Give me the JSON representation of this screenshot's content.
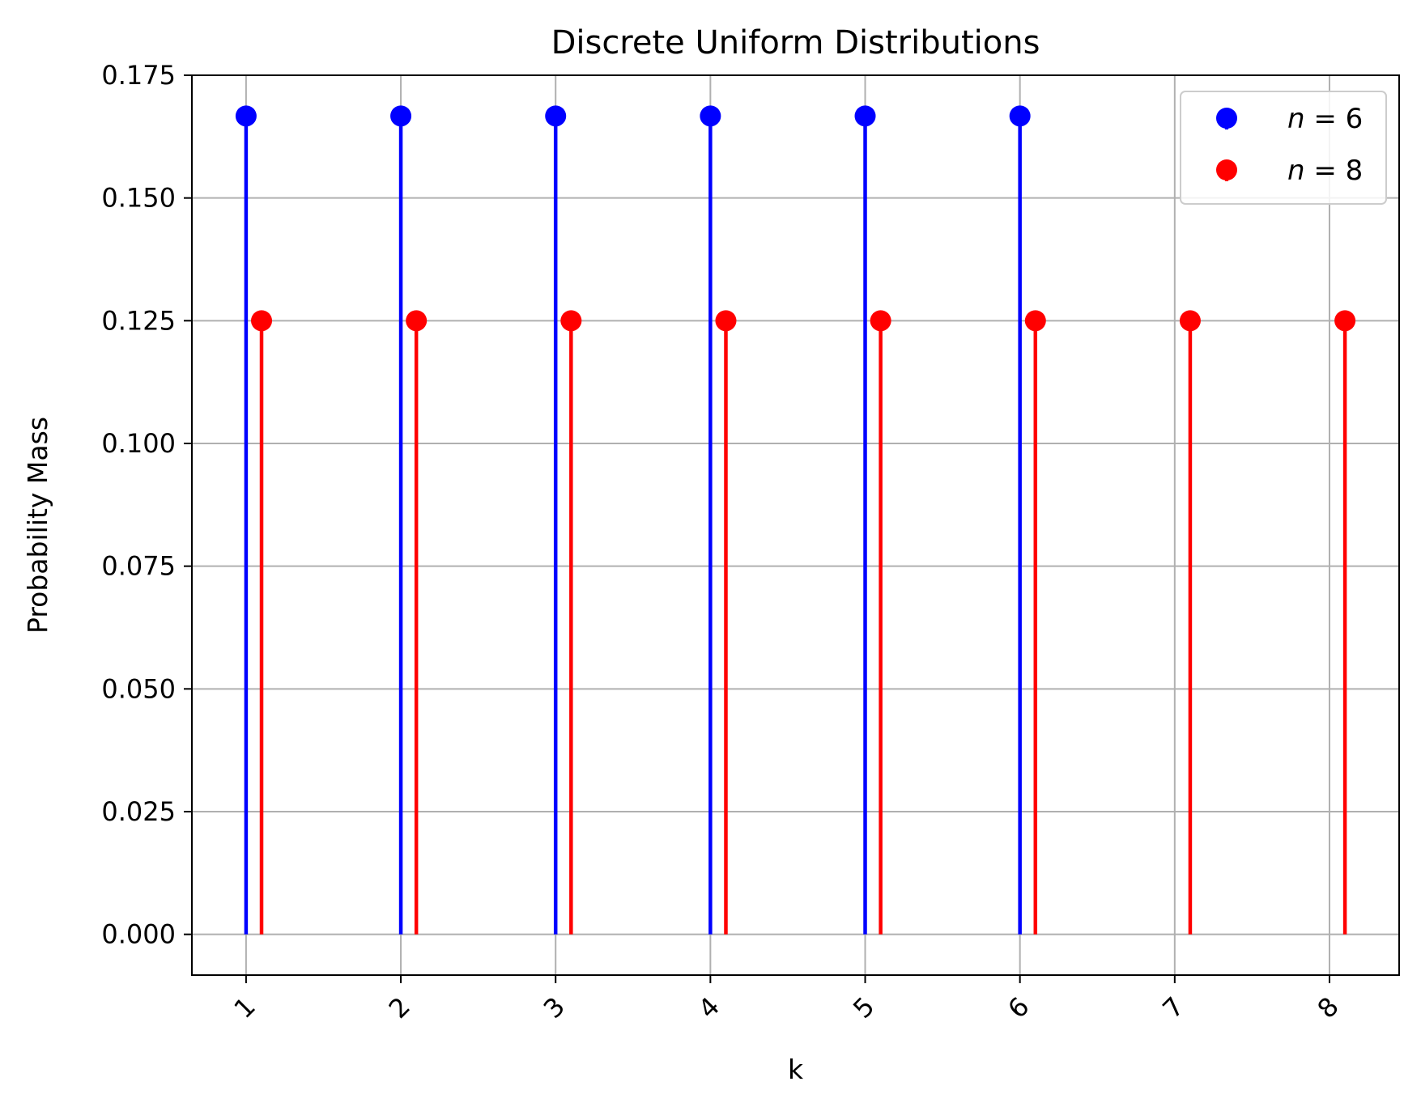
{
  "chart_data": {
    "type": "stem",
    "title": "Discrete Uniform Distributions",
    "xlabel": "k",
    "ylabel": "Probability Mass",
    "x_ticks": [
      "1",
      "2",
      "3",
      "4",
      "5",
      "6",
      "7",
      "8"
    ],
    "y_ticks": [
      "0.000",
      "0.025",
      "0.050",
      "0.075",
      "0.100",
      "0.125",
      "0.150",
      "0.175"
    ],
    "xlim": [
      0.65,
      8.45
    ],
    "ylim": [
      -0.0083,
      0.175
    ],
    "grid": true,
    "legend_position": "top-right",
    "series": [
      {
        "name": "n = 6",
        "legend_var": "n",
        "legend_eq": " = 6",
        "color": "#0000ff",
        "x": [
          1,
          2,
          3,
          4,
          5,
          6
        ],
        "y": [
          0.1667,
          0.1667,
          0.1667,
          0.1667,
          0.1667,
          0.1667
        ]
      },
      {
        "name": "n = 8",
        "legend_var": "n",
        "legend_eq": " = 8",
        "color": "#ff0000",
        "x": [
          1.1,
          2.1,
          3.1,
          4.1,
          5.1,
          6.1,
          7.1,
          8.1
        ],
        "y": [
          0.125,
          0.125,
          0.125,
          0.125,
          0.125,
          0.125,
          0.125,
          0.125
        ]
      }
    ]
  }
}
